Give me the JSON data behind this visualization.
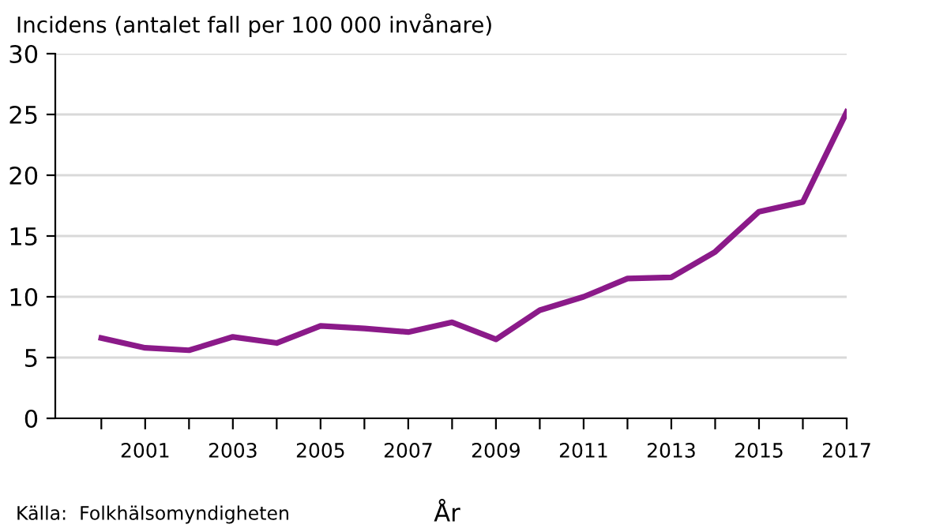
{
  "chart_data": {
    "type": "line",
    "ylabel": "Incidens (antalet fall per 100 000 invånare)",
    "xlabel": "År",
    "categories": [
      null,
      "2001",
      null,
      "2003",
      null,
      "2005",
      null,
      "2007",
      null,
      "2009",
      null,
      "2011",
      null,
      "2013",
      null,
      "2015",
      null,
      "2017"
    ],
    "series": [
      {
        "color": "#8b1a89",
        "values": [
          6.6,
          5.8,
          5.6,
          6.7,
          6.2,
          7.6,
          7.4,
          7.1,
          7.9,
          6.5,
          8.9,
          10.0,
          11.5,
          11.6,
          13.7,
          17.0,
          17.8,
          25.2
        ]
      }
    ],
    "ylim": [
      0,
      30
    ],
    "yticks": [
      0,
      5,
      10,
      15,
      20,
      25,
      30
    ],
    "grid": "y",
    "legend": false,
    "marker": "none",
    "line_style": "solid",
    "annotations": [
      "Källa:  Folkhälsomyndigheten"
    ]
  }
}
